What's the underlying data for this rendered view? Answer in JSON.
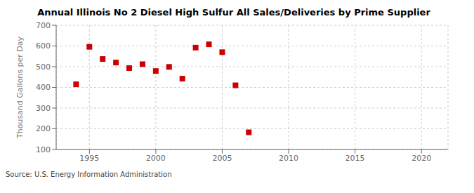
{
  "chart_data": {
    "type": "scatter",
    "title": "Annual Illinois No 2 Diesel High Sulfur All Sales/Deliveries by Prime Supplier",
    "y_label": "Thousand Gallons per Day",
    "annotations": [
      "Source: U.S. Energy Information Administration"
    ],
    "x": [
      1994,
      1995,
      1996,
      1997,
      1998,
      1999,
      2000,
      2001,
      2002,
      2003,
      2004,
      2005,
      2006,
      2007
    ],
    "values": [
      415,
      596,
      537,
      520,
      493,
      512,
      479,
      499,
      442,
      592,
      608,
      570,
      410,
      183
    ],
    "color": "#cc0000",
    "marker": "square",
    "xlim": [
      1992.5,
      2022
    ],
    "ylim": [
      100,
      700
    ],
    "xticks": [
      1995,
      2000,
      2005,
      2010,
      2015,
      2020
    ],
    "yticks": [
      100,
      200,
      300,
      400,
      500,
      600,
      700
    ],
    "grid": true
  }
}
